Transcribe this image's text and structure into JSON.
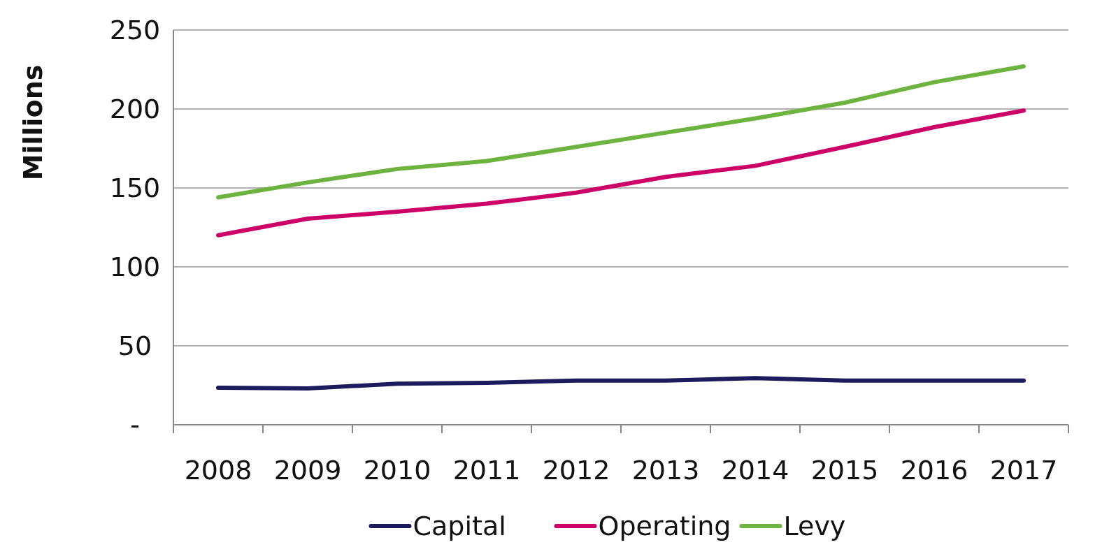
{
  "chart_data": {
    "type": "line",
    "ylabel": "Millions",
    "categories": [
      "2008",
      "2009",
      "2010",
      "2011",
      "2012",
      "2013",
      "2014",
      "2015",
      "2016",
      "2017"
    ],
    "series": [
      {
        "name": "Capital",
        "color": "#1b1b5e",
        "values": [
          23.5,
          23,
          26,
          26.5,
          28,
          28,
          29.5,
          28,
          28,
          28
        ]
      },
      {
        "name": "Operating",
        "color": "#cc0066",
        "values": [
          120,
          130.5,
          135,
          140,
          147,
          157,
          164,
          176,
          188.5,
          199
        ]
      },
      {
        "name": "Levy",
        "color": "#6db33f",
        "values": [
          144,
          153.5,
          162,
          167,
          176,
          185,
          194,
          204,
          217,
          227
        ]
      }
    ],
    "ylim": [
      0,
      250
    ],
    "yticks": [
      {
        "value": 0,
        "label": "-"
      },
      50,
      100,
      150,
      200,
      250
    ],
    "grid": "y",
    "legend": "bottom",
    "marker": "none",
    "line_style": "solid"
  }
}
